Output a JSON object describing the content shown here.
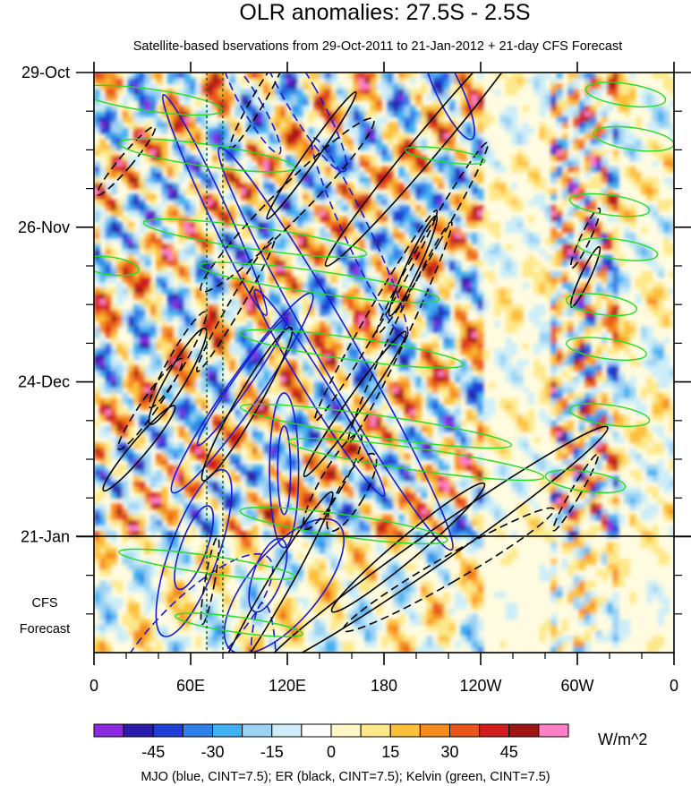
{
  "chart_data": {
    "type": "heatmap",
    "title": "OLR anomalies: 27.5S - 2.5S",
    "subtitle": "Satellite-based bservations from 29-Oct-2011 to 21-Jan-2012 + 21-day CFS Forecast",
    "x_axis": {
      "label": "",
      "ticks": [
        "0",
        "60E",
        "120E",
        "180",
        "120W",
        "60W",
        "0"
      ],
      "tick_values": [
        0,
        60,
        120,
        180,
        240,
        300,
        360
      ],
      "range": [
        0,
        360
      ],
      "units": "degrees longitude (east)"
    },
    "y_axis": {
      "label": "",
      "ticks": [
        "29-Oct",
        "26-Nov",
        "24-Dec",
        "21-Jan"
      ],
      "tick_day_offsets": [
        0,
        28,
        56,
        84
      ],
      "range_days": [
        0,
        105
      ],
      "reversed": true
    },
    "forecast_label": [
      "CFS",
      "Forecast"
    ],
    "forecast_start_day": 84,
    "forecast_length_days": 21,
    "colorbar": {
      "units": "W/m^2",
      "tick_labels": [
        "-45",
        "-30",
        "-15",
        "0",
        "15",
        "30",
        "45"
      ],
      "levels": [
        -52.5,
        -45,
        -37.5,
        -30,
        -22.5,
        -15,
        -7.5,
        0,
        7.5,
        15,
        22.5,
        30,
        37.5,
        45,
        52.5
      ],
      "colors": [
        "#8a2be2",
        "#2b1baa",
        "#1f3fd6",
        "#2f80e8",
        "#3fb0f0",
        "#9cd2f4",
        "#cdeef8",
        "#ffffff",
        "#fff8c4",
        "#fde88a",
        "#fcc03a",
        "#f68b1f",
        "#e8541b",
        "#d21c1c",
        "#a01414",
        "#ff7fc7"
      ]
    },
    "contours": {
      "mjo": {
        "name": "MJO",
        "color": "#1a1ad0",
        "cint": 7.5
      },
      "er": {
        "name": "ER",
        "color": "#000000",
        "cint": 7.5
      },
      "kelvin": {
        "name": "Kelvin",
        "color": "#22dd22",
        "cint": 7.5
      }
    },
    "reference_longitudes": [
      70,
      80
    ],
    "legend_text": "MJO (blue, CINT=7.5); ER (black, CINT=7.5); Kelvin (green, CINT=7.5)"
  }
}
